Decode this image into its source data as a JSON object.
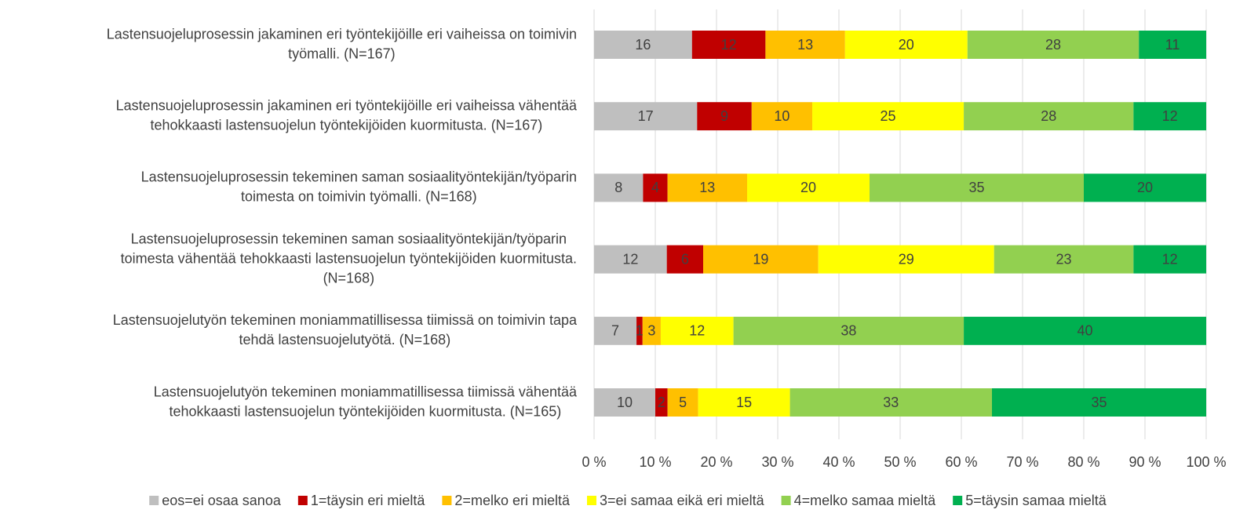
{
  "chart_data": {
    "type": "stacked-bar-horizontal",
    "stacking": "percent",
    "categories": [
      [
        "Lastensuojeluprosessin jakaminen eri työntekijöille eri vaiheissa on toimivin",
        "työmalli. (N=167)"
      ],
      [
        "Lastensuojeluprosessin jakaminen eri työntekijöille eri vaiheissa vähentää",
        "tehokkaasti lastensuojelun työntekijöiden kuormitusta. (N=167)"
      ],
      [
        "Lastensuojeluprosessin tekeminen saman sosiaalityöntekijän/työparin",
        "toimesta on toimivin työmalli. (N=168)"
      ],
      [
        "Lastensuojeluprosessin tekeminen saman sosiaalityöntekijän/työparin",
        "toimesta vähentää tehokkaasti lastensuojelun työntekijöiden kuormitusta.",
        "(N=168)"
      ],
      [
        "Lastensuojelutyön tekeminen moniammatillisessa tiimissä on toimivin tapa",
        "tehdä lastensuojelutyötä. (N=168)"
      ],
      [
        "Lastensuojelutyön tekeminen moniammatillisessa tiimissä vähentää",
        "tehokkaasti lastensuojelun työntekijöiden kuormitusta. (N=165)"
      ]
    ],
    "series": [
      {
        "name": "eos=ei osaa sanoa",
        "color": "#bfbfbf",
        "values": [
          16,
          17,
          8,
          12,
          7,
          10
        ]
      },
      {
        "name": "1=täysin eri mieltä",
        "color": "#c00000",
        "values": [
          12,
          9,
          4,
          6,
          1,
          2
        ]
      },
      {
        "name": "2=melko eri mieltä",
        "color": "#ffc000",
        "values": [
          13,
          10,
          13,
          19,
          3,
          5
        ]
      },
      {
        "name": "3=ei samaa eikä eri mieltä",
        "color": "#ffff00",
        "values": [
          20,
          25,
          20,
          29,
          12,
          15
        ]
      },
      {
        "name": "4=melko samaa mieltä",
        "color": "#92d050",
        "values": [
          28,
          28,
          35,
          23,
          38,
          33
        ]
      },
      {
        "name": "5=täysin samaa mieltä",
        "color": "#00b050",
        "values": [
          11,
          12,
          20,
          12,
          40,
          35
        ]
      }
    ],
    "xlim": [
      0,
      100
    ],
    "xticks": [
      {
        "value": 0,
        "label": "0 %"
      },
      {
        "value": 10,
        "label": "10 %"
      },
      {
        "value": 20,
        "label": "20 %"
      },
      {
        "value": 30,
        "label": "30 %"
      },
      {
        "value": 40,
        "label": "40 %"
      },
      {
        "value": 50,
        "label": "50 %"
      },
      {
        "value": 60,
        "label": "60 %"
      },
      {
        "value": 70,
        "label": "70 %"
      },
      {
        "value": 80,
        "label": "80 %"
      },
      {
        "value": 90,
        "label": "90 %"
      },
      {
        "value": 100,
        "label": "100 %"
      }
    ],
    "grid": true,
    "legend": "bottom"
  }
}
